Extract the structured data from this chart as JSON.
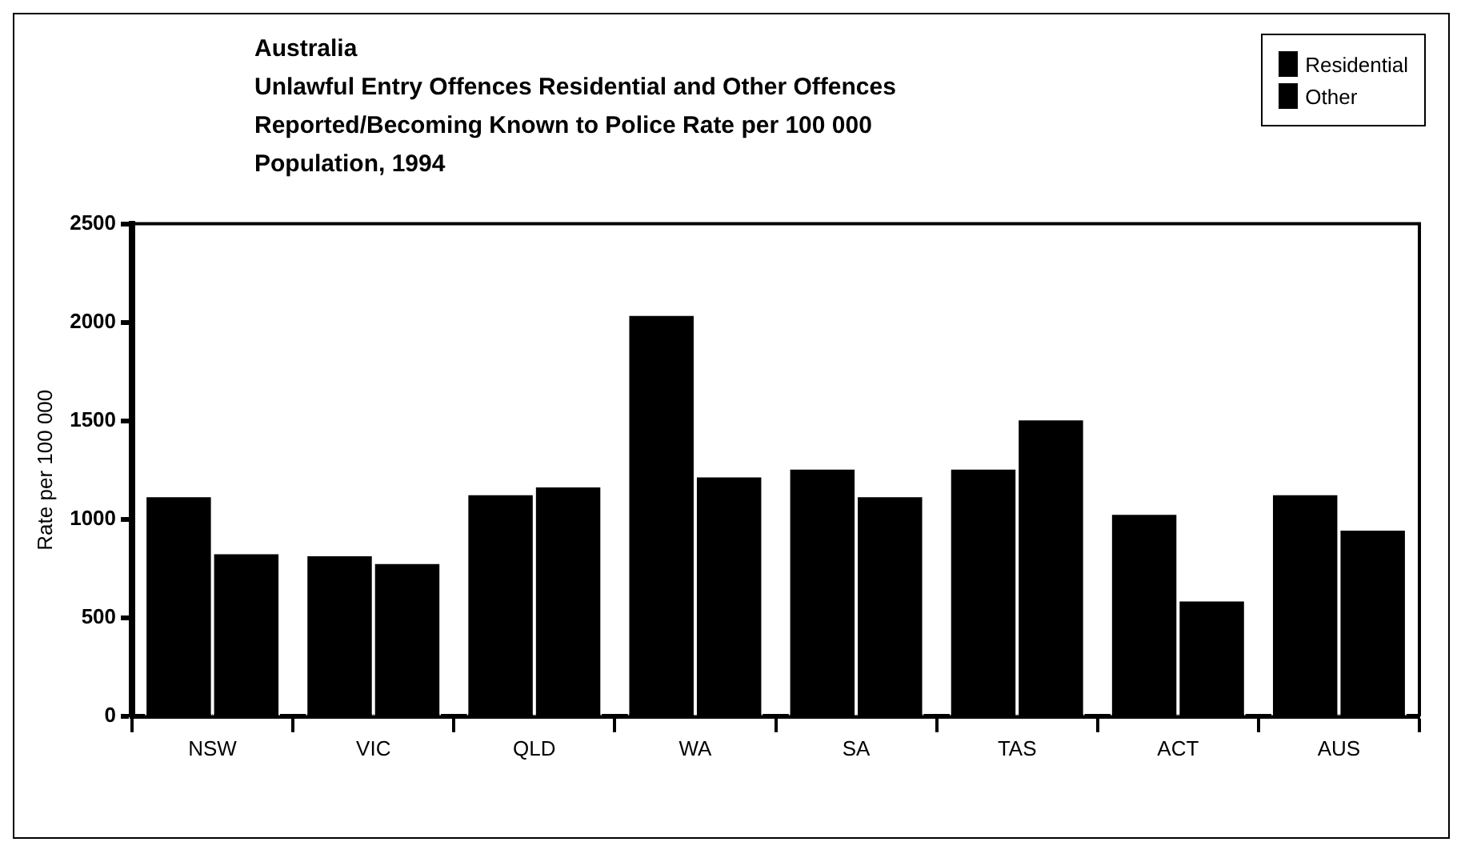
{
  "chart_data": {
    "type": "bar",
    "title": "Australia",
    "subtitle": "Unlawful Entry Offences Residential and Other Offences Reported/Becoming Known to Police Rate per 100 000 Population, 1994",
    "ylabel": "Rate per 100 000",
    "categories": [
      "NSW",
      "VIC",
      "QLD",
      "WA",
      "SA",
      "TAS",
      "ACT",
      "AUS"
    ],
    "series": [
      {
        "name": "Residential",
        "color": "#000000",
        "values": [
          1120,
          820,
          1130,
          2040,
          1260,
          1260,
          1030,
          1130
        ]
      },
      {
        "name": "Other",
        "color": "#000000",
        "values": [
          830,
          780,
          1170,
          1220,
          1120,
          1510,
          590,
          950
        ]
      }
    ],
    "ylim": [
      0,
      2500
    ],
    "yticks": [
      0,
      500,
      1000,
      1500,
      2000,
      2500
    ],
    "grid": false,
    "legend": "top right"
  }
}
